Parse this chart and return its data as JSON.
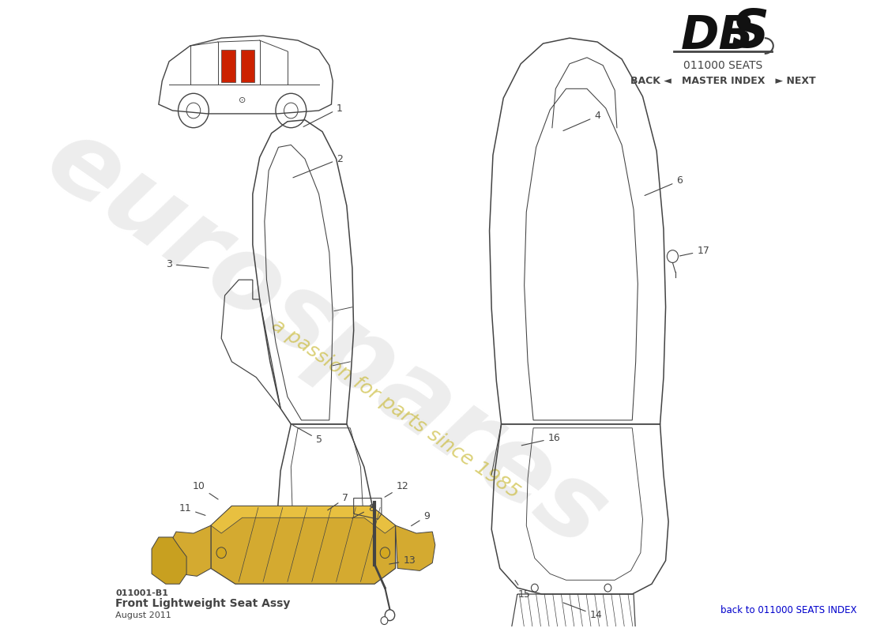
{
  "title_dbs": "DBS",
  "subtitle_code": "011000 SEATS",
  "nav_text": "BACK ◄   MASTER INDEX   ► NEXT",
  "part_code": "011001-B1",
  "part_name": "Front Lightweight Seat Assy",
  "date": "August 2011",
  "footer_right": "back to 011000 SEATS INDEX",
  "watermark_text": "eurospares",
  "watermark_subtext": "a passion for parts since 1985",
  "bg_color": "#ffffff",
  "line_color": "#444444",
  "rail_fill": "#d4aa30",
  "watermark_gray": "#cccccc",
  "watermark_yellow": "#c8b830",
  "footer_blue": "#0000cc",
  "dbs_color": "#111111"
}
